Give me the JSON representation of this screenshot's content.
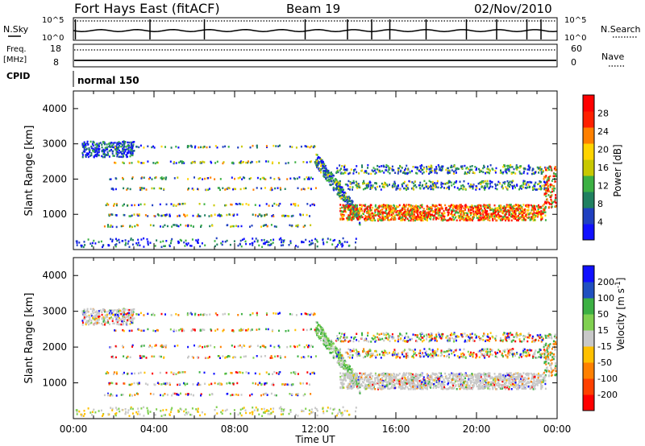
{
  "header": {
    "title": "Fort Hays East (fitACF)",
    "beam": "Beam 19",
    "date": "02/Nov/2010"
  },
  "status_panels": {
    "nsky_label": "N.Sky",
    "nsky_top": "10^5",
    "nsky_bottom": "10^0",
    "nsearch_label": "N.Search",
    "nsearch_top": "10^5",
    "nsearch_bottom": "10^0",
    "freq_label_line1": "Freq.",
    "freq_label_line2": "[MHz]",
    "freq_top": "18",
    "freq_bottom": "8",
    "nave_label": "Nave",
    "nave_top": "60",
    "nave_bottom": "0",
    "cpid_label": "CPID",
    "cpid_value": "normal 150"
  },
  "colors": {
    "cb_red": "#ff0000",
    "cb_orange": "#ff8000",
    "cb_yellow": "#ffd400",
    "cb_green": "#3cb043",
    "cb_blue": "#1010ff",
    "cb_gray": "#c8c8c8"
  },
  "chart_data": [
    {
      "type": "heatmap",
      "name": "power",
      "ylabel": "Slant Range [km]",
      "xlabel": "",
      "ylim": [
        0,
        4500
      ],
      "yticks": [
        "1000",
        "2000",
        "3000",
        "4000"
      ],
      "xlim_hours": [
        0,
        24
      ],
      "colorbar": {
        "label": "Power [dB]",
        "ticks": [
          "4",
          "8",
          "12",
          "16",
          "20",
          "24",
          "28"
        ],
        "range": [
          0,
          32
        ]
      },
      "features": [
        {
          "time_start": "00:30",
          "time_end": "03:00",
          "range_min": 2600,
          "range_max": 3200,
          "level": "low"
        },
        {
          "time_start": "02:00",
          "time_end": "12:00",
          "range_min": 500,
          "range_max": 3000,
          "level": "sparse"
        },
        {
          "time_start": "12:00",
          "time_end": "23:30",
          "range_min": 700,
          "range_max": 2500,
          "level": "high"
        }
      ]
    },
    {
      "type": "heatmap",
      "name": "velocity",
      "ylabel": "Slant Range [km]",
      "xlabel": "Time UT",
      "ylim": [
        0,
        4500
      ],
      "yticks": [
        "1000",
        "2000",
        "3000",
        "4000"
      ],
      "xticks": [
        "00:00",
        "04:00",
        "08:00",
        "12:00",
        "16:00",
        "20:00",
        "00:00"
      ],
      "colorbar": {
        "label": "Velocity [m s^-1]",
        "ticks": [
          "200",
          "100",
          "50",
          "15",
          "-15",
          "-50",
          "-100",
          "-200"
        ]
      }
    }
  ]
}
